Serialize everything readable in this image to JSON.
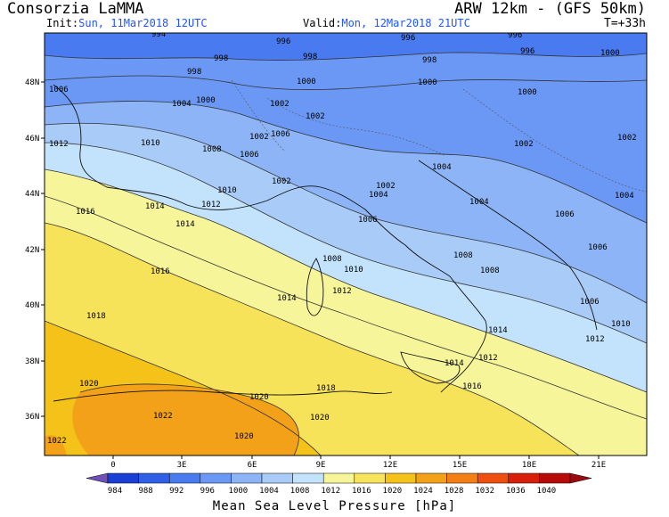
{
  "header": {
    "left_title": "Consorzia LaMMA",
    "right_title": "ARW 12km - (GFS 50km)",
    "init_label": "Init:",
    "init_value": "Sun, 11Mar2018 12UTC",
    "valid_label": "Valid:",
    "valid_value": "Mon, 12Mar2018 21UTC",
    "forecast_step": "T=+33h"
  },
  "map": {
    "lat_labels": [
      "48N",
      "46N",
      "44N",
      "42N",
      "40N",
      "38N",
      "36N"
    ],
    "lon_labels": [
      "0",
      "3E",
      "6E",
      "9E",
      "12E",
      "15E",
      "18E",
      "21E"
    ],
    "isobar_labels": [
      {
        "text": "994"
      },
      {
        "text": "996"
      },
      {
        "text": "996"
      },
      {
        "text": "996"
      },
      {
        "text": "998"
      },
      {
        "text": "998"
      },
      {
        "text": "998"
      },
      {
        "text": "996"
      },
      {
        "text": "998"
      },
      {
        "text": "1000"
      },
      {
        "text": "1000"
      },
      {
        "text": "1000"
      },
      {
        "text": "1000"
      },
      {
        "text": "1000"
      },
      {
        "text": "1006"
      },
      {
        "text": "1004"
      },
      {
        "text": "1002"
      },
      {
        "text": "1002"
      },
      {
        "text": "1002"
      },
      {
        "text": "1002"
      },
      {
        "text": "1012"
      },
      {
        "text": "1010"
      },
      {
        "text": "1008"
      },
      {
        "text": "1006"
      },
      {
        "text": "1006"
      },
      {
        "text": "1004"
      },
      {
        "text": "1002"
      },
      {
        "text": "1002"
      },
      {
        "text": "1002"
      },
      {
        "text": "1004"
      },
      {
        "text": "1004"
      },
      {
        "text": "1010"
      },
      {
        "text": "1004"
      },
      {
        "text": "1016"
      },
      {
        "text": "1014"
      },
      {
        "text": "1012"
      },
      {
        "text": "1014"
      },
      {
        "text": "1006"
      },
      {
        "text": "1006"
      },
      {
        "text": "1008"
      },
      {
        "text": "1006"
      },
      {
        "text": "1008"
      },
      {
        "text": "1016"
      },
      {
        "text": "1010"
      },
      {
        "text": "1012"
      },
      {
        "text": "1014"
      },
      {
        "text": "1008"
      },
      {
        "text": "1006"
      },
      {
        "text": "1018"
      },
      {
        "text": "1014"
      },
      {
        "text": "1012"
      },
      {
        "text": "1010"
      },
      {
        "text": "1014"
      },
      {
        "text": "1012"
      },
      {
        "text": "1020"
      },
      {
        "text": "1020"
      },
      {
        "text": "1018"
      },
      {
        "text": "1016"
      },
      {
        "text": "1022"
      },
      {
        "text": "1020"
      },
      {
        "text": "1020"
      },
      {
        "text": "1022"
      }
    ]
  },
  "legend": {
    "title": "Mean Sea Level Pressure [hPa]",
    "ticks": [
      "984",
      "988",
      "992",
      "996",
      "1000",
      "1004",
      "1008",
      "1012",
      "1016",
      "1020",
      "1024",
      "1028",
      "1032",
      "1036",
      "1040"
    ],
    "colors": [
      "#1a3fd6",
      "#2f5fe6",
      "#4a7aef",
      "#6b98f5",
      "#8cb4f7",
      "#a8cbf8",
      "#c2e3fb",
      "#f7f59a",
      "#f7e35a",
      "#f5c21a",
      "#f4a11a",
      "#f47f15",
      "#ee4f10",
      "#d81f0a",
      "#b80a08"
    ],
    "left_cap_color": "#7050b8",
    "right_cap_color": "#9a0a10"
  }
}
